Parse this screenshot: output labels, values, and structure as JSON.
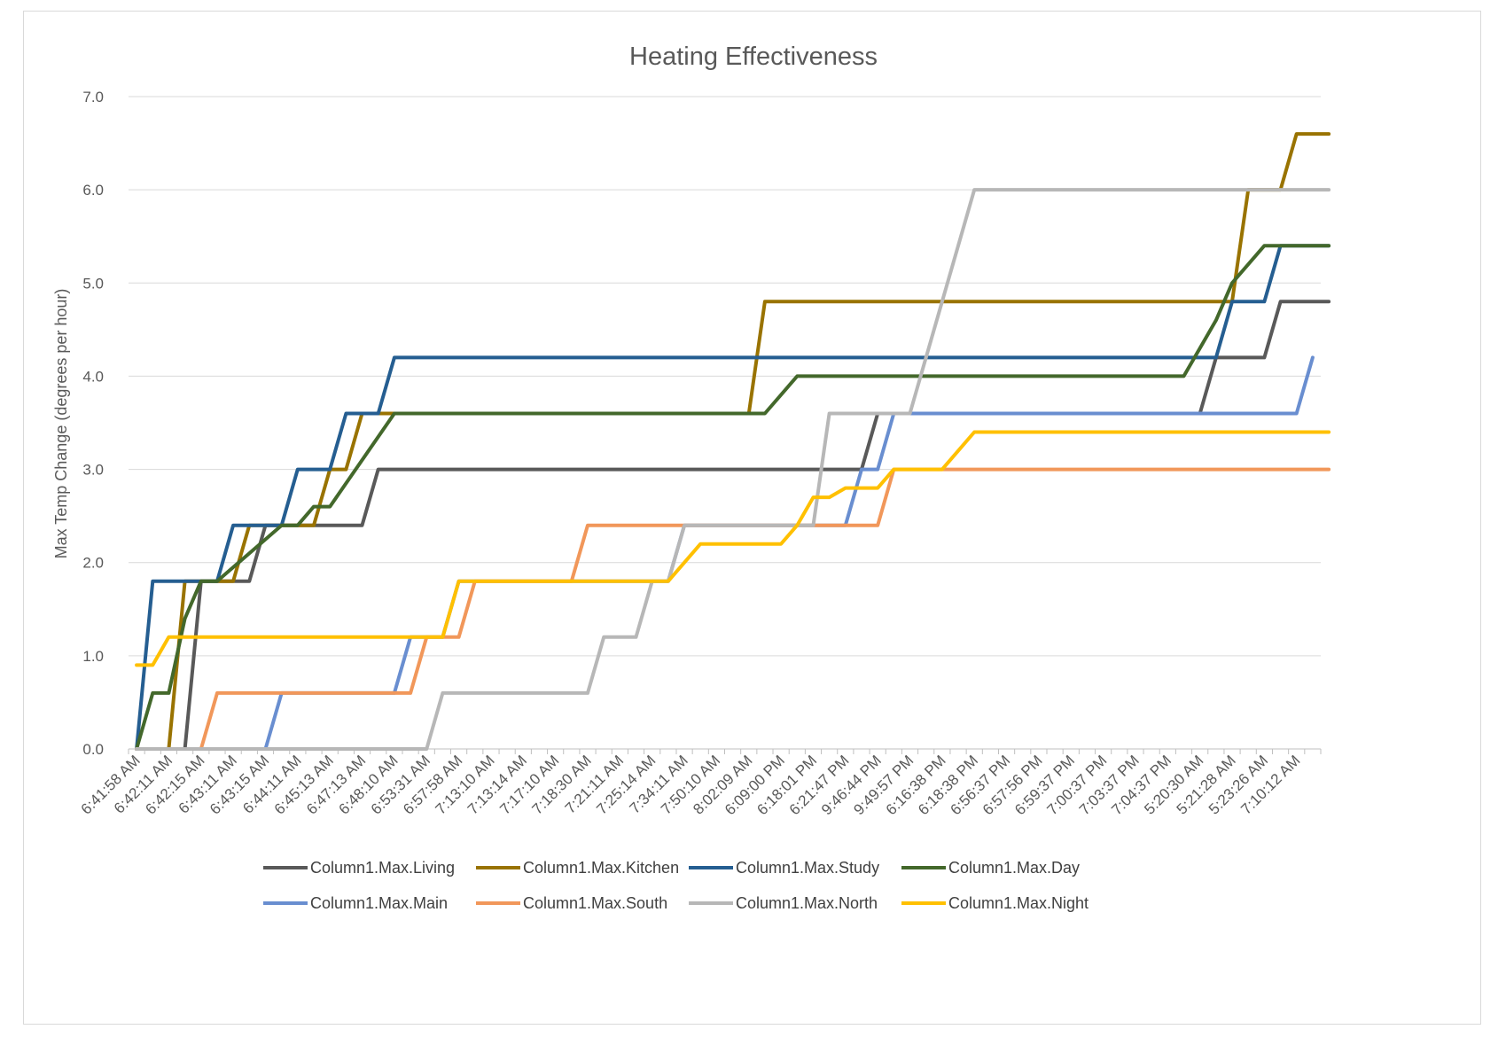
{
  "chart_data": {
    "type": "line",
    "title": "Heating Effectiveness",
    "xlabel": "",
    "ylabel": "Max Temp Change (degrees per hour)",
    "ylim": [
      0,
      7
    ],
    "yticks": [
      "0.0",
      "1.0",
      "2.0",
      "3.0",
      "4.0",
      "5.0",
      "6.0",
      "7.0"
    ],
    "grid": true,
    "legend_position": "bottom",
    "x": [
      "6:41:58 AM",
      "",
      "6:42:11 AM",
      "",
      "6:42:15 AM",
      "",
      "6:43:11 AM",
      "",
      "6:43:15 AM",
      "",
      "6:44:11 AM",
      "",
      "6:45:13 AM",
      "",
      "6:47:13 AM",
      "",
      "6:48:10 AM",
      "",
      "6:53:31 AM",
      "",
      "6:57:58 AM",
      "",
      "7:13:10 AM",
      "",
      "7:13:14 AM",
      "",
      "7:17:10 AM",
      "",
      "7:18:30 AM",
      "",
      "7:21:11 AM",
      "",
      "7:25:14 AM",
      "",
      "7:34:11 AM",
      "",
      "7:50:10 AM",
      "",
      "8:02:09 AM",
      "",
      "6:09:00 PM",
      "",
      "6:18:01 PM",
      "",
      "6:21:47 PM",
      "",
      "9:46:44 PM",
      "",
      "9:49:57 PM",
      "",
      "6:16:38 PM",
      "",
      "6:18:38 PM",
      "",
      "6:56:37 PM",
      "",
      "6:57:56 PM",
      "",
      "6:59:37 PM",
      "",
      "7:00:37 PM",
      "",
      "7:03:37 PM",
      "",
      "7:04:37 PM",
      "",
      "5:20:30 AM",
      "",
      "5:21:28 AM",
      "",
      "5:23:26 AM",
      "",
      "7:10:12 AM",
      ""
    ],
    "series": [
      {
        "name": "Column1.Max.Living",
        "color": "#595959",
        "points": [
          [
            0,
            0
          ],
          [
            2,
            0
          ],
          [
            3,
            0
          ],
          [
            4,
            1.8
          ],
          [
            6,
            1.8
          ],
          [
            7,
            1.8
          ],
          [
            8,
            2.4
          ],
          [
            14,
            2.4
          ],
          [
            15,
            3.0
          ],
          [
            45,
            3.0
          ],
          [
            46,
            3.6
          ],
          [
            66,
            3.6
          ],
          [
            67,
            4.2
          ],
          [
            70,
            4.2
          ],
          [
            71,
            4.8
          ],
          [
            74,
            4.8
          ]
        ]
      },
      {
        "name": "Column1.Max.Kitchen",
        "color": "#997300",
        "points": [
          [
            0,
            0
          ],
          [
            2,
            0
          ],
          [
            3,
            1.8
          ],
          [
            6,
            1.8
          ],
          [
            7,
            2.4
          ],
          [
            11,
            2.4
          ],
          [
            12,
            3.0
          ],
          [
            13,
            3.0
          ],
          [
            14,
            3.6
          ],
          [
            38,
            3.6
          ],
          [
            39,
            4.8
          ],
          [
            68,
            4.8
          ],
          [
            69,
            6.0
          ],
          [
            71,
            6.0
          ],
          [
            72,
            6.6
          ],
          [
            74,
            6.6
          ]
        ]
      },
      {
        "name": "Column1.Max.Study",
        "color": "#255e91",
        "points": [
          [
            0,
            0
          ],
          [
            1,
            1.8
          ],
          [
            5,
            1.8
          ],
          [
            6,
            2.4
          ],
          [
            9,
            2.4
          ],
          [
            10,
            3.0
          ],
          [
            12,
            3.0
          ],
          [
            13,
            3.6
          ],
          [
            15,
            3.6
          ],
          [
            16,
            4.2
          ],
          [
            67,
            4.2
          ],
          [
            68,
            4.8
          ],
          [
            70,
            4.8
          ],
          [
            71,
            5.4
          ],
          [
            74,
            5.4
          ]
        ]
      },
      {
        "name": "Column1.Max.Day",
        "color": "#43682b",
        "points": [
          [
            0,
            0
          ],
          [
            1,
            0.6
          ],
          [
            2,
            0.6
          ],
          [
            3,
            1.4
          ],
          [
            4,
            1.8
          ],
          [
            5,
            1.8
          ],
          [
            9,
            2.4
          ],
          [
            10,
            2.4
          ],
          [
            11,
            2.6
          ],
          [
            12,
            2.6
          ],
          [
            16,
            3.6
          ],
          [
            39,
            3.6
          ],
          [
            41,
            4.0
          ],
          [
            65,
            4.0
          ],
          [
            67,
            4.6
          ],
          [
            68,
            5.0
          ],
          [
            70,
            5.4
          ],
          [
            74,
            5.4
          ]
        ]
      },
      {
        "name": "Column1.Max.Main",
        "color": "#698ed0",
        "points": [
          [
            0,
            0
          ],
          [
            8,
            0
          ],
          [
            9,
            0.6
          ],
          [
            16,
            0.6
          ],
          [
            17,
            1.2
          ],
          [
            19,
            1.2
          ],
          [
            20,
            1.8
          ],
          [
            33,
            1.8
          ],
          [
            34,
            2.4
          ],
          [
            42,
            2.4
          ],
          [
            43,
            2.4
          ],
          [
            44,
            2.4
          ],
          [
            45,
            3.0
          ],
          [
            46,
            3.0
          ],
          [
            47,
            3.6
          ],
          [
            72,
            3.6
          ],
          [
            73,
            4.2
          ]
        ]
      },
      {
        "name": "Column1.Max.South",
        "color": "#f1975a",
        "points": [
          [
            0,
            0
          ],
          [
            4,
            0
          ],
          [
            5,
            0.6
          ],
          [
            17,
            0.6
          ],
          [
            18,
            1.2
          ],
          [
            20,
            1.2
          ],
          [
            21,
            1.8
          ],
          [
            27,
            1.8
          ],
          [
            28,
            2.4
          ],
          [
            46,
            2.4
          ],
          [
            47,
            3.0
          ],
          [
            74,
            3.0
          ]
        ]
      },
      {
        "name": "Column1.Max.North",
        "color": "#b7b7b7",
        "points": [
          [
            0,
            0
          ],
          [
            18,
            0
          ],
          [
            19,
            0.6
          ],
          [
            28,
            0.6
          ],
          [
            29,
            1.2
          ],
          [
            31,
            1.2
          ],
          [
            32,
            1.8
          ],
          [
            33,
            1.8
          ],
          [
            34,
            2.4
          ],
          [
            42,
            2.4
          ],
          [
            43,
            3.6
          ],
          [
            48,
            3.6
          ],
          [
            52,
            6.0
          ],
          [
            74,
            6.0
          ]
        ]
      },
      {
        "name": "Column1.Max.Night",
        "color": "#ffc000",
        "points": [
          [
            0,
            0.9
          ],
          [
            1,
            0.9
          ],
          [
            2,
            1.2
          ],
          [
            19,
            1.2
          ],
          [
            20,
            1.8
          ],
          [
            33,
            1.8
          ],
          [
            35,
            2.2
          ],
          [
            40,
            2.2
          ],
          [
            41,
            2.4
          ],
          [
            42,
            2.7
          ],
          [
            43,
            2.7
          ],
          [
            44,
            2.8
          ],
          [
            46,
            2.8
          ],
          [
            47,
            3.0
          ],
          [
            50,
            3.0
          ],
          [
            52,
            3.4
          ],
          [
            74,
            3.4
          ]
        ]
      }
    ]
  }
}
